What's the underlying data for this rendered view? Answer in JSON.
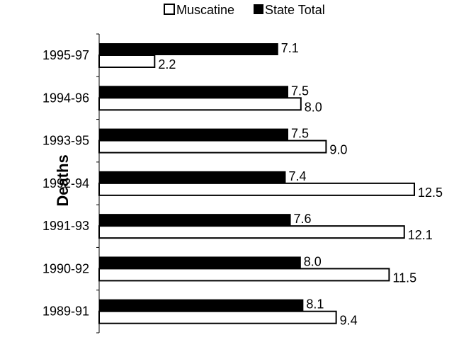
{
  "chart_data": {
    "type": "bar",
    "orientation": "horizontal",
    "ylabel": "Deaths",
    "categories": [
      "1995-97",
      "1994-96",
      "1993-95",
      "1992-94",
      "1991-93",
      "1990-92",
      "1989-91"
    ],
    "series": [
      {
        "name": "Muscatine",
        "color": "#ffffff",
        "values": [
          2.2,
          8.0,
          9.0,
          12.5,
          12.1,
          11.5,
          9.4
        ],
        "labels": [
          "2.2",
          "8.0",
          "9.0",
          "12.5",
          "12.1",
          "11.5",
          "9.4"
        ]
      },
      {
        "name": "State Total",
        "color": "#000000",
        "values": [
          7.1,
          7.5,
          7.5,
          7.4,
          7.6,
          8.0,
          8.1
        ],
        "labels": [
          "7.1",
          "7.5",
          "7.5",
          "7.4",
          "7.6",
          "8.0",
          "8.1"
        ]
      }
    ],
    "xlim": [
      0,
      12.5
    ],
    "legend_position": "top-center",
    "grid": false
  }
}
